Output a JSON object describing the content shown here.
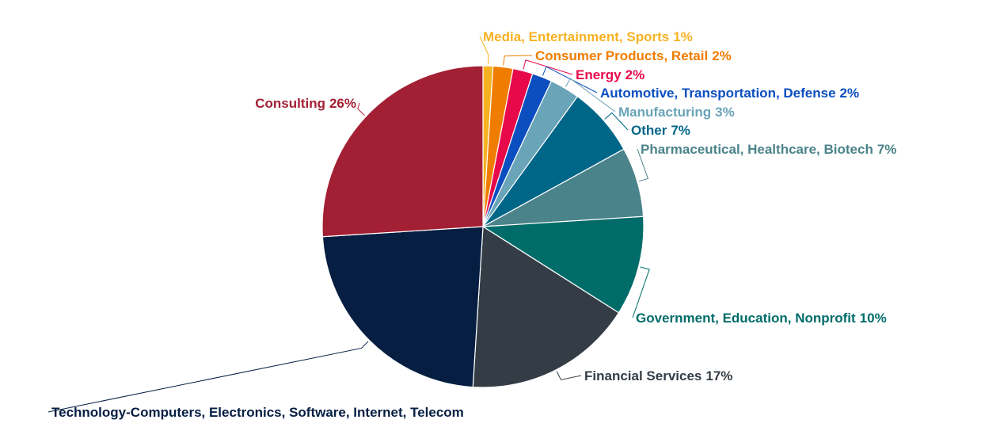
{
  "chart_data": {
    "type": "pie",
    "categories": [
      "Media, Entertainment, Sports",
      "Consumer Products, Retail",
      "Energy",
      "Automotive, Transportation, Defense",
      "Manufacturing",
      "Other",
      "Pharmaceutical, Healthcare, Biotech",
      "Government, Education, Nonprofit",
      "Financial Services",
      "Technology-Computers, Electronics, Software, Internet, Telecom",
      "Consulting"
    ],
    "values": [
      1,
      2,
      2,
      2,
      3,
      7,
      7,
      10,
      17,
      23,
      26
    ],
    "value_labels": [
      "1%",
      "2%",
      "2%",
      "2%",
      "3%",
      "7%",
      "7%",
      "10%",
      "17%",
      null,
      "26%"
    ],
    "colors": [
      "#f6b223",
      "#f07d00",
      "#e8094b",
      "#0b4ec0",
      "#69a4b8",
      "#006688",
      "#4b838a",
      "#006c69",
      "#343d46",
      "#051e42",
      "#a31f34"
    ]
  }
}
